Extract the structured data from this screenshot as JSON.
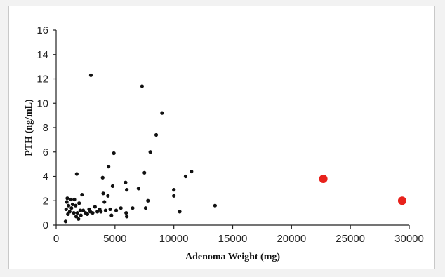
{
  "chart_data": {
    "type": "scatter",
    "title": "",
    "xlabel": "Adenoma Weight (mg)",
    "ylabel": "PTH (ng/mL)",
    "xlim": [
      0,
      30000
    ],
    "ylim": [
      0,
      16
    ],
    "xticks": [
      0,
      5000,
      10000,
      15000,
      20000,
      25000,
      30000
    ],
    "yticks": [
      0,
      2,
      4,
      6,
      8,
      10,
      12,
      14,
      16
    ],
    "grid": false,
    "legend": "none",
    "series": [
      {
        "color": "#111111",
        "points": [
          [
            800,
            0.3
          ],
          [
            850,
            1.3
          ],
          [
            900,
            1.9
          ],
          [
            950,
            2.2
          ],
          [
            1000,
            0.9
          ],
          [
            1050,
            1.6
          ],
          [
            1150,
            1.1
          ],
          [
            1250,
            2.1
          ],
          [
            1300,
            1.4
          ],
          [
            1400,
            1.7
          ],
          [
            1500,
            1.0
          ],
          [
            1550,
            2.1
          ],
          [
            1650,
            1.6
          ],
          [
            1700,
            0.7
          ],
          [
            1750,
            4.2
          ],
          [
            1800,
            1.0
          ],
          [
            1900,
            0.5
          ],
          [
            1950,
            1.8
          ],
          [
            2050,
            1.2
          ],
          [
            2100,
            0.8
          ],
          [
            2200,
            2.5
          ],
          [
            2300,
            1.2
          ],
          [
            2500,
            1.0
          ],
          [
            2650,
            0.9
          ],
          [
            2800,
            1.3
          ],
          [
            2900,
            1.1
          ],
          [
            2950,
            12.3
          ],
          [
            3100,
            1.0
          ],
          [
            3300,
            1.5
          ],
          [
            3500,
            1.1
          ],
          [
            3700,
            1.3
          ],
          [
            3800,
            1.1
          ],
          [
            3950,
            3.9
          ],
          [
            4000,
            2.6
          ],
          [
            4100,
            1.9
          ],
          [
            4200,
            1.2
          ],
          [
            4400,
            2.4
          ],
          [
            4450,
            4.8
          ],
          [
            4600,
            1.3
          ],
          [
            4700,
            0.8
          ],
          [
            4800,
            3.2
          ],
          [
            4900,
            5.9
          ],
          [
            5100,
            1.2
          ],
          [
            5500,
            1.4
          ],
          [
            5900,
            3.5
          ],
          [
            6000,
            2.9
          ],
          [
            5950,
            1.0
          ],
          [
            6000,
            0.7
          ],
          [
            6500,
            1.4
          ],
          [
            7000,
            3.0
          ],
          [
            7300,
            11.4
          ],
          [
            7500,
            4.3
          ],
          [
            7600,
            1.4
          ],
          [
            7800,
            2.0
          ],
          [
            8000,
            6.0
          ],
          [
            8500,
            7.4
          ],
          [
            9000,
            9.2
          ],
          [
            10000,
            2.9
          ],
          [
            10000,
            2.4
          ],
          [
            10500,
            1.1
          ],
          [
            11000,
            4.0
          ],
          [
            11500,
            4.4
          ],
          [
            13500,
            1.6
          ]
        ]
      },
      {
        "color": "#e8221c",
        "points": [
          [
            22700,
            3.8
          ],
          [
            29400,
            2.0
          ]
        ]
      }
    ]
  }
}
